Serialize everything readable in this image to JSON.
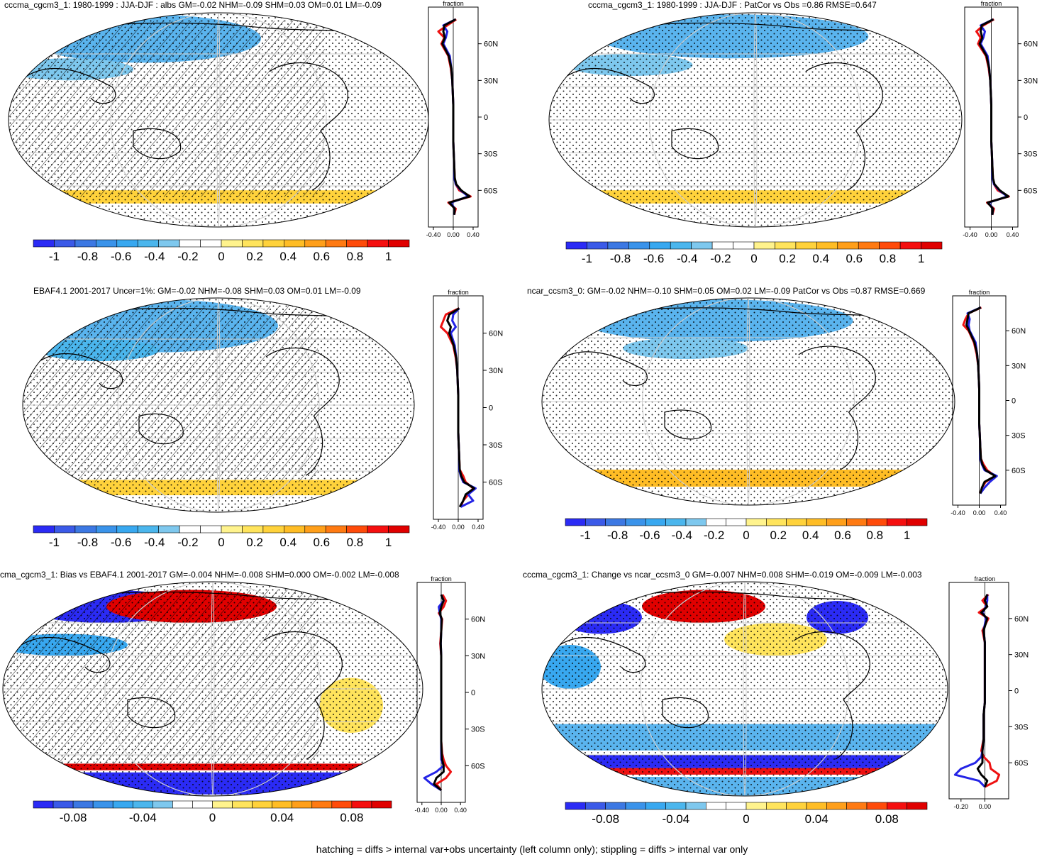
{
  "footer": "hatching = diffs > internal var+obs uncertainty (left column only); stippling = diffs > internal var only",
  "colors": {
    "full": [
      "#2b2bf5",
      "#3b5ae8",
      "#3c78e3",
      "#3a93ea",
      "#38a8f0",
      "#4bb6ed",
      "#7ec8ee",
      "#ffffff",
      "#ffffff",
      "#fff38d",
      "#ffe45c",
      "#ffd23b",
      "#ffbd25",
      "#ff9f1a",
      "#ff7a12",
      "#ff4b0a",
      "#f50f0f",
      "#e00000"
    ],
    "blue": "#2424e6",
    "red": "#ee1111",
    "black": "#000000"
  },
  "panels": [
    {
      "title": "cccma_cgcm3_1: 1980-1999 : JJA-DJF : albs GM=-0.02 NHM=-0.09 SHM=0.03 OM=0.01 LM=-0.09",
      "cbar_ticks": [
        "-1",
        "-0.8",
        "-0.6",
        "-0.4",
        "-0.2",
        "0",
        "0.2",
        "0.4",
        "0.6",
        "0.8",
        "1"
      ],
      "profile": {
        "label": "fraction",
        "x_ticks": [
          "-0.40",
          "0.00",
          "0.40"
        ],
        "y_ticks": [
          "60N",
          "30N",
          "0",
          "30S",
          "60S"
        ]
      }
    },
    {
      "title": "cccma_cgcm3_1: 1980-1999 : JJA-DJF : PatCor vs Obs =0.86 RMSE=0.647",
      "cbar_ticks": [
        "-1",
        "-0.8",
        "-0.6",
        "-0.4",
        "-0.2",
        "0",
        "0.2",
        "0.4",
        "0.6",
        "0.8",
        "1"
      ],
      "profile": {
        "label": "fraction",
        "x_ticks": [
          "-0.40",
          "0.00",
          "0.40"
        ],
        "y_ticks": [
          "60N",
          "30N",
          "0",
          "30S",
          "60S"
        ]
      }
    },
    {
      "title": "EBAF4.1 2001-2017 Uncer=1%: GM=-0.02 NHM=-0.08 SHM=0.03 OM=0.01 LM=-0.09",
      "cbar_ticks": [
        "-1",
        "-0.8",
        "-0.6",
        "-0.4",
        "-0.2",
        "0",
        "0.2",
        "0.4",
        "0.6",
        "0.8",
        "1"
      ],
      "profile": {
        "label": "fraction",
        "x_ticks": [
          "-0.40",
          "0.00",
          "0.40"
        ],
        "y_ticks": [
          "60N",
          "30N",
          "0",
          "30S",
          "60S"
        ]
      }
    },
    {
      "title": "ncar_ccsm3_0: GM=-0.02 NHM=-0.10 SHM=0.05 OM=0.02 LM=-0.09 PatCor vs Obs =0.87 RMSE=0.669",
      "cbar_ticks": [
        "-1",
        "-0.8",
        "-0.6",
        "-0.4",
        "-0.2",
        "0",
        "0.2",
        "0.4",
        "0.6",
        "0.8",
        "1"
      ],
      "profile": {
        "label": "fraction",
        "x_ticks": [
          "-0.40",
          "0.00",
          "0.40"
        ],
        "y_ticks": [
          "60N",
          "30N",
          "0",
          "30S",
          "60S"
        ]
      }
    },
    {
      "title": "cma_cgcm3_1: Bias vs EBAF4.1 2001-2017 GM=-0.004 NHM=-0.008 SHM=0.000 OM=-0.002 LM=-0.008",
      "cbar_ticks": [
        "-0.08",
        "-0.04",
        "0",
        "0.04",
        "0.08"
      ],
      "profile": {
        "label": "fraction",
        "x_ticks": [
          "-0.40",
          "0.00",
          "0.40"
        ],
        "y_ticks": [
          "60N",
          "30N",
          "0",
          "30S",
          "60S"
        ]
      }
    },
    {
      "title": "cccma_cgcm3_1: Change vs ncar_ccsm3_0 GM=-0.007 NHM=0.008 SHM=-0.019 OM=-0.009 LM=-0.003",
      "cbar_ticks": [
        "-0.08",
        "-0.04",
        "0",
        "0.04",
        "0.08"
      ],
      "profile": {
        "label": "fraction",
        "x_ticks": [
          "-0.20",
          "0.00"
        ],
        "y_ticks": [
          "60N",
          "30N",
          "0",
          "30S",
          "60S"
        ]
      }
    }
  ],
  "chart_data": [
    {
      "type": "heatmap",
      "title": "cccma_cgcm3_1: 1980-1999 : JJA-DJF : albs GM=-0.02 NHM=-0.09 SHM=0.03 OM=0.01 LM=-0.09",
      "colorbar_range": [
        -1,
        1
      ],
      "lines": {
        "latitudes": [
          80,
          75,
          70,
          65,
          60,
          50,
          40,
          30,
          20,
          10,
          0,
          -10,
          -20,
          -30,
          -40,
          -50,
          -55,
          -60,
          -65,
          -70,
          -75,
          -80
        ],
        "series": [
          {
            "color": "red",
            "values": [
              0.06,
              -0.12,
              -0.3,
              -0.18,
              -0.24,
              -0.1,
              -0.05,
              -0.02,
              -0.01,
              0.0,
              0.0,
              0.0,
              0.0,
              0.01,
              0.02,
              0.03,
              0.05,
              0.12,
              0.35,
              -0.1,
              0.05,
              0.02
            ]
          },
          {
            "color": "blue",
            "values": [
              0.05,
              -0.2,
              -0.12,
              -0.15,
              -0.2,
              -0.07,
              -0.04,
              -0.02,
              -0.01,
              0.0,
              0.0,
              0.0,
              0.0,
              0.01,
              0.02,
              0.02,
              0.05,
              0.15,
              0.3,
              -0.05,
              0.03,
              0.02
            ]
          },
          {
            "color": "black",
            "values": [
              0.05,
              -0.18,
              -0.2,
              -0.17,
              -0.22,
              -0.09,
              -0.04,
              -0.02,
              -0.01,
              0.0,
              0.0,
              0.0,
              0.0,
              0.01,
              0.02,
              0.03,
              0.06,
              0.16,
              0.33,
              -0.08,
              0.03,
              0.02
            ]
          }
        ]
      }
    },
    {
      "type": "heatmap",
      "title": "cccma_cgcm3_1: 1980-1999 : JJA-DJF : PatCor vs Obs =0.86 RMSE=0.647",
      "colorbar_range": [
        -1,
        1
      ],
      "lines": {
        "latitudes": [
          80,
          75,
          70,
          65,
          60,
          50,
          40,
          30,
          20,
          10,
          0,
          -10,
          -20,
          -30,
          -40,
          -50,
          -55,
          -60,
          -65,
          -70,
          -75,
          -80
        ],
        "series": [
          {
            "color": "red",
            "values": [
              0.05,
              -0.15,
              -0.28,
              -0.2,
              -0.25,
              -0.1,
              -0.05,
              -0.02,
              -0.01,
              0.0,
              0.0,
              0.0,
              0.0,
              0.01,
              0.02,
              0.03,
              0.05,
              0.12,
              0.33,
              -0.08,
              0.05,
              0.02
            ]
          },
          {
            "color": "blue",
            "values": [
              0.04,
              -0.2,
              -0.12,
              -0.15,
              -0.2,
              -0.07,
              -0.04,
              -0.02,
              -0.01,
              0.0,
              0.0,
              0.0,
              0.0,
              0.01,
              0.02,
              0.02,
              0.05,
              0.15,
              0.3,
              -0.05,
              0.03,
              0.02
            ]
          },
          {
            "color": "black",
            "values": [
              0.04,
              -0.18,
              -0.2,
              -0.17,
              -0.22,
              -0.09,
              -0.04,
              -0.02,
              -0.01,
              0.0,
              0.0,
              0.0,
              0.0,
              0.01,
              0.02,
              0.03,
              0.06,
              0.16,
              0.32,
              -0.07,
              0.03,
              0.02
            ]
          }
        ]
      }
    },
    {
      "type": "heatmap",
      "title": "EBAF4.1 2001-2017 Uncer=1%: GM=-0.02 NHM=-0.08 SHM=0.03 OM=0.01 LM=-0.09",
      "colorbar_range": [
        -1,
        1
      ],
      "lines": {
        "latitudes": [
          80,
          75,
          70,
          65,
          60,
          50,
          40,
          30,
          20,
          10,
          0,
          -10,
          -20,
          -30,
          -40,
          -50,
          -55,
          -60,
          -65,
          -70,
          -75,
          -80
        ],
        "series": [
          {
            "color": "red",
            "values": [
              0.02,
              -0.25,
              -0.3,
              -0.35,
              -0.22,
              -0.1,
              -0.05,
              -0.02,
              -0.01,
              0.0,
              0.0,
              0.0,
              0.0,
              0.01,
              0.02,
              0.03,
              0.1,
              0.15,
              0.3,
              0.2,
              0.1,
              0.05
            ]
          },
          {
            "color": "blue",
            "values": [
              0.02,
              -0.1,
              -0.12,
              -0.05,
              -0.15,
              -0.07,
              -0.04,
              -0.02,
              -0.01,
              0.0,
              0.0,
              0.0,
              0.0,
              0.01,
              0.02,
              0.02,
              0.05,
              0.1,
              0.35,
              0.2,
              0.3,
              0.05
            ]
          },
          {
            "color": "black",
            "values": [
              0.02,
              -0.18,
              -0.22,
              -0.15,
              -0.18,
              -0.09,
              -0.04,
              -0.02,
              -0.01,
              0.0,
              0.0,
              0.0,
              0.0,
              0.01,
              0.02,
              0.03,
              0.06,
              0.12,
              0.32,
              0.15,
              0.1,
              0.03
            ]
          }
        ]
      }
    },
    {
      "type": "heatmap",
      "title": "ncar_ccsm3_0: GM=-0.02 NHM=-0.10 SHM=0.05 OM=0.02 LM=-0.09 PatCor vs Obs =0.87 RMSE=0.669",
      "colorbar_range": [
        -1,
        1
      ],
      "lines": {
        "latitudes": [
          80,
          75,
          70,
          65,
          60,
          50,
          40,
          30,
          20,
          10,
          0,
          -10,
          -20,
          -30,
          -40,
          -50,
          -55,
          -60,
          -65,
          -70,
          -75,
          -80
        ],
        "series": [
          {
            "color": "red",
            "values": [
              0.04,
              -0.2,
              -0.26,
              -0.3,
              -0.2,
              -0.1,
              -0.05,
              -0.02,
              -0.01,
              0.0,
              0.0,
              0.0,
              0.0,
              0.01,
              0.02,
              0.03,
              0.08,
              0.15,
              0.3,
              0.12,
              0.05,
              0.02
            ]
          },
          {
            "color": "blue",
            "values": [
              0.03,
              -0.22,
              -0.18,
              -0.2,
              -0.18,
              -0.07,
              -0.04,
              -0.02,
              -0.01,
              0.0,
              0.0,
              0.0,
              0.0,
              0.01,
              0.02,
              0.02,
              0.05,
              0.1,
              0.33,
              0.2,
              0.1,
              0.02
            ]
          },
          {
            "color": "black",
            "values": [
              0.03,
              -0.2,
              -0.22,
              -0.24,
              -0.19,
              -0.09,
              -0.04,
              -0.02,
              -0.01,
              0.0,
              0.0,
              0.0,
              0.0,
              0.01,
              0.02,
              0.03,
              0.06,
              0.12,
              0.3,
              0.1,
              0.05,
              0.02
            ]
          }
        ]
      }
    },
    {
      "type": "heatmap",
      "title": "cma_cgcm3_1: Bias vs EBAF4.1 2001-2017 GM=-0.004 NHM=-0.008 SHM=0.000 OM=-0.002 LM=-0.008",
      "colorbar_range": [
        -0.1,
        0.1
      ],
      "lines": {
        "latitudes": [
          80,
          75,
          70,
          65,
          60,
          50,
          40,
          30,
          20,
          10,
          0,
          -10,
          -20,
          -30,
          -40,
          -50,
          -55,
          -60,
          -65,
          -70,
          -75,
          -80
        ],
        "series": [
          {
            "color": "red",
            "values": [
              0.03,
              0.1,
              0.05,
              -0.05,
              0.02,
              0.0,
              -0.02,
              0.0,
              0.0,
              0.0,
              0.0,
              0.0,
              0.0,
              0.0,
              0.0,
              0.02,
              0.05,
              0.1,
              0.2,
              0.1,
              -0.1,
              0.0
            ]
          },
          {
            "color": "blue",
            "values": [
              0.0,
              0.05,
              -0.05,
              -0.03,
              0.0,
              0.0,
              -0.01,
              0.0,
              0.0,
              0.0,
              0.0,
              0.0,
              0.0,
              0.0,
              0.0,
              0.0,
              0.0,
              0.05,
              -0.1,
              -0.35,
              -0.2,
              0.0
            ]
          },
          {
            "color": "black",
            "values": [
              0.0,
              0.05,
              0.0,
              -0.03,
              0.01,
              0.0,
              -0.01,
              0.0,
              0.0,
              0.0,
              0.0,
              0.0,
              0.0,
              0.0,
              0.0,
              0.01,
              0.02,
              0.05,
              0.05,
              -0.1,
              -0.15,
              0.0
            ]
          }
        ]
      }
    },
    {
      "type": "heatmap",
      "title": "cccma_cgcm3_1: Change vs ncar_ccsm3_0 GM=-0.007 NHM=0.008 SHM=-0.019 OM=-0.009 LM=-0.003",
      "colorbar_range": [
        -0.1,
        0.1
      ],
      "lines": {
        "latitudes": [
          80,
          75,
          70,
          65,
          60,
          50,
          40,
          30,
          20,
          10,
          0,
          -10,
          -20,
          -30,
          -40,
          -50,
          -55,
          -60,
          -65,
          -70,
          -75,
          -80
        ],
        "series": [
          {
            "color": "red",
            "values": [
              0.03,
              -0.02,
              0.02,
              -0.05,
              0.03,
              -0.02,
              0.0,
              0.0,
              0.0,
              0.0,
              0.0,
              0.0,
              -0.01,
              -0.01,
              -0.01,
              -0.03,
              -0.01,
              0.04,
              0.05,
              0.12,
              0.1,
              0.0
            ]
          },
          {
            "color": "blue",
            "values": [
              0.02,
              0.02,
              0.01,
              -0.02,
              0.01,
              -0.01,
              0.0,
              0.0,
              0.0,
              0.0,
              0.0,
              0.0,
              -0.01,
              -0.01,
              -0.01,
              -0.02,
              -0.03,
              -0.08,
              -0.2,
              -0.25,
              -0.05,
              0.0
            ]
          },
          {
            "color": "black",
            "values": [
              0.02,
              0.0,
              0.02,
              -0.03,
              0.02,
              -0.01,
              0.0,
              0.0,
              0.0,
              0.0,
              0.0,
              0.0,
              -0.01,
              -0.01,
              -0.01,
              -0.02,
              -0.02,
              -0.02,
              -0.06,
              -0.03,
              0.02,
              0.0
            ]
          }
        ]
      }
    }
  ]
}
